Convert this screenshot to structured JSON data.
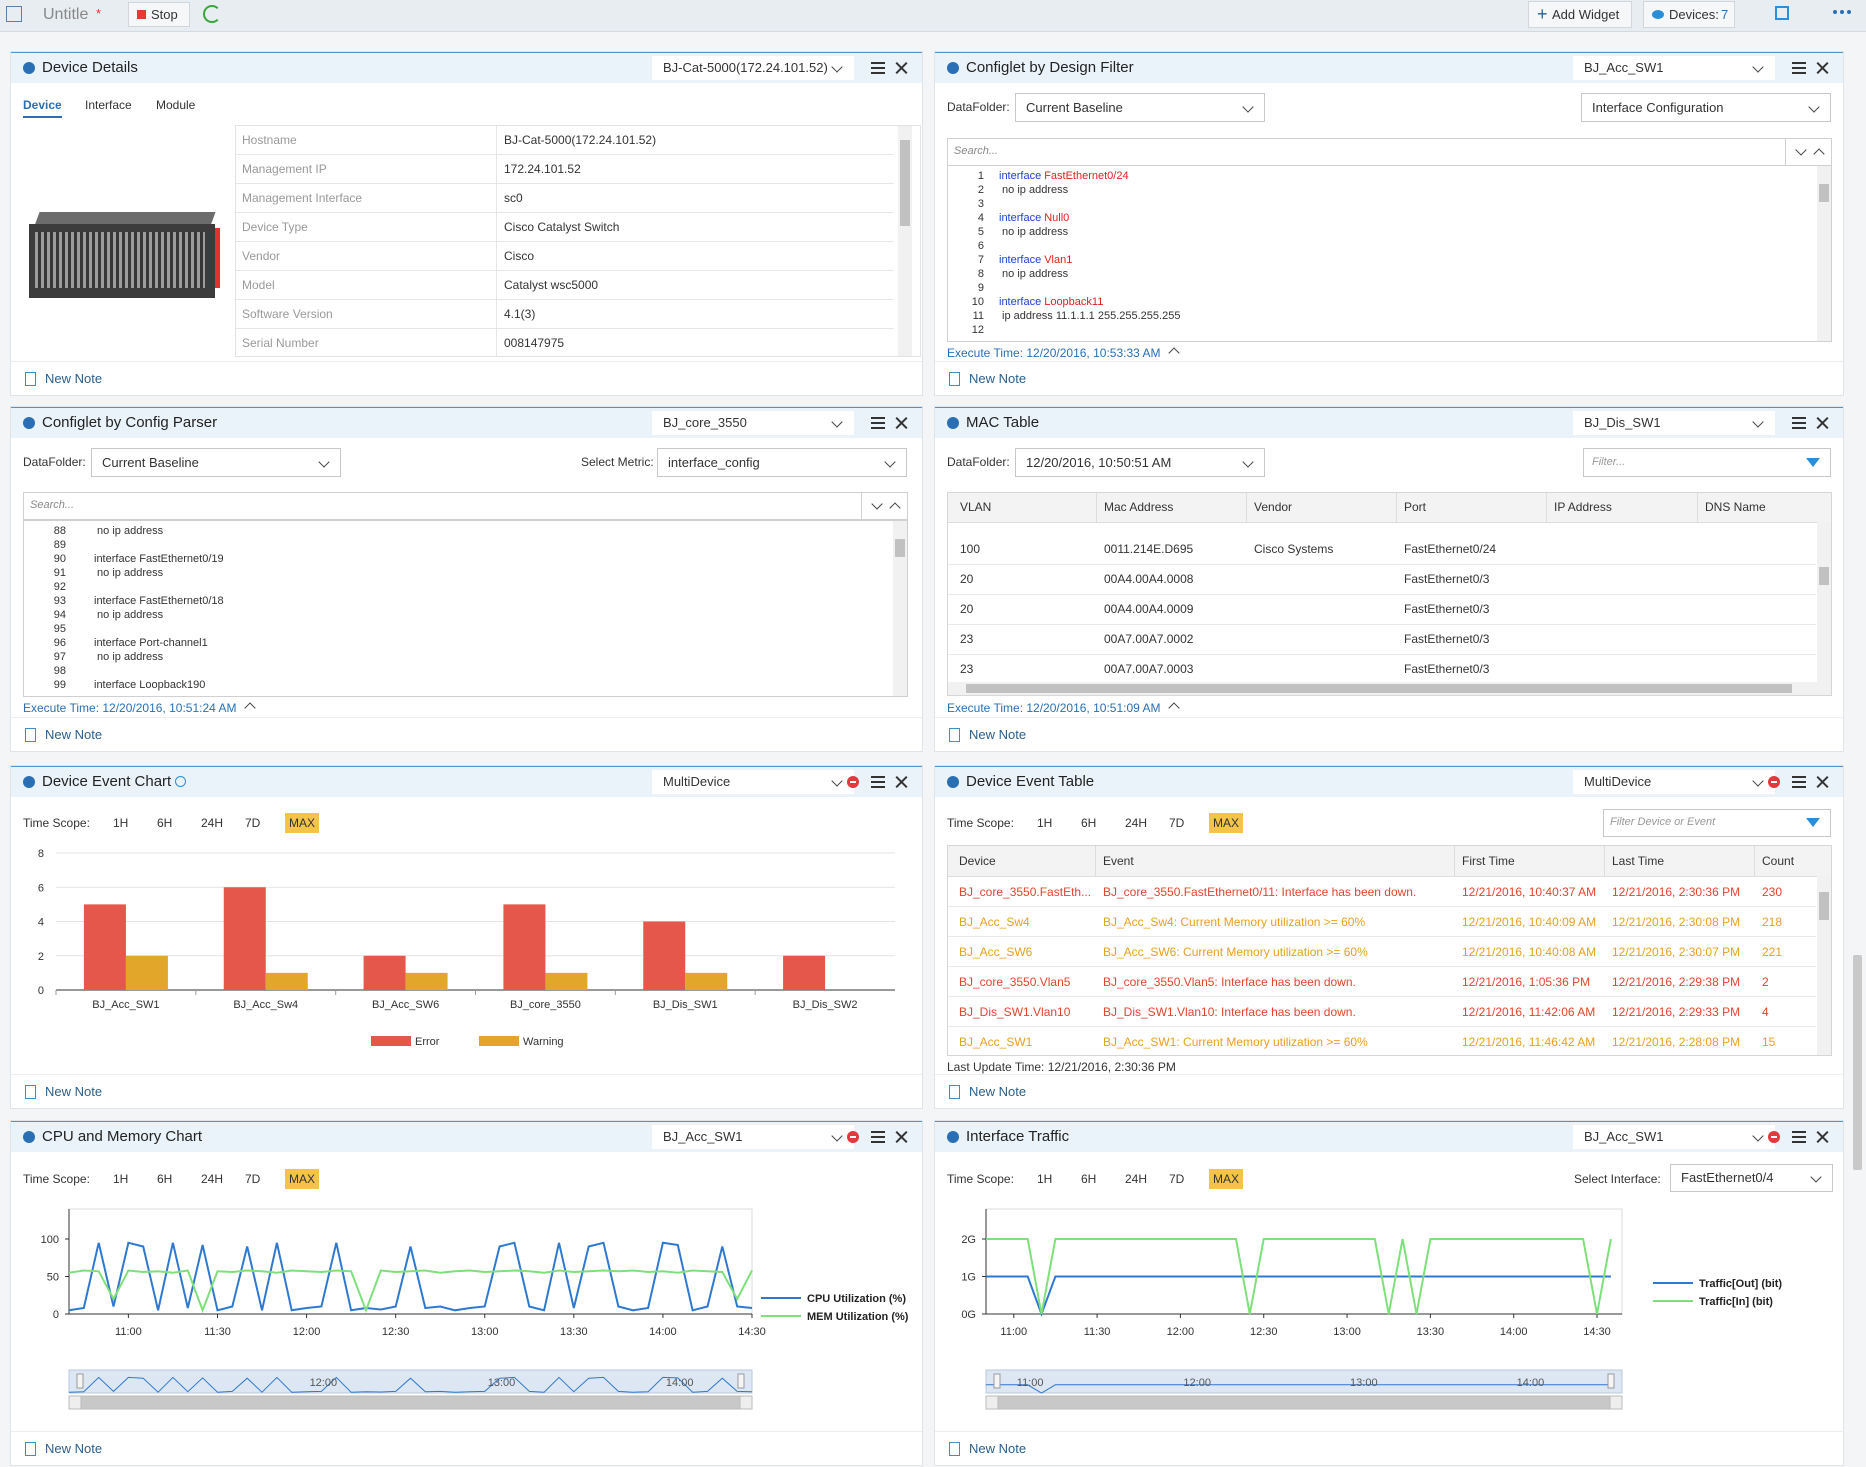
{
  "toolbar": {
    "title": "Untitle",
    "modified": "*",
    "stop": "Stop",
    "add_widget": "Add Widget",
    "devices": "Devices:",
    "device_count": 7
  },
  "device_details": {
    "title": "Device Details",
    "selector": "BJ-Cat-5000(172.24.101.52)",
    "tabs": [
      "Device",
      "Interface",
      "Module"
    ],
    "rows": [
      [
        "Hostname",
        "BJ-Cat-5000(172.24.101.52)"
      ],
      [
        "Management IP",
        "172.24.101.52"
      ],
      [
        "Management Interface",
        "sc0"
      ],
      [
        "Device Type",
        "Cisco Catalyst Switch"
      ],
      [
        "Vendor",
        "Cisco"
      ],
      [
        "Model",
        "Catalyst wsc5000"
      ],
      [
        "Software Version",
        "4.1(3)"
      ],
      [
        "Serial Number",
        "008147975"
      ]
    ],
    "note": "New Note"
  },
  "configlet_design": {
    "title": "Configlet by Design Filter",
    "selector": "BJ_Acc_SW1",
    "datafolder_label": "DataFolder:",
    "datafolder": "Current Baseline",
    "filter": "Interface Configuration",
    "search": "Search...",
    "keyword_color": "#1f3fd0",
    "name_color": "#e02020",
    "lines": [
      {
        "n": 1,
        "code": "interface",
        "name": "FastEthernet0/24"
      },
      {
        "n": 2,
        "code": " no ip address"
      },
      {
        "n": 3
      },
      {
        "n": 4,
        "code": "interface",
        "name": "Null0"
      },
      {
        "n": 5,
        "code": " no ip address"
      },
      {
        "n": 6
      },
      {
        "n": 7,
        "code": "interface",
        "name": "Vlan1"
      },
      {
        "n": 8,
        "code": " no ip address"
      },
      {
        "n": 9
      },
      {
        "n": 10,
        "code": "interface",
        "name": "Loopback11"
      },
      {
        "n": 11,
        "code": " ip address 11.1.1.1 255.255.255.255"
      },
      {
        "n": 12
      }
    ],
    "execute_time": "Execute Time: 12/20/2016, 10:53:33 AM",
    "note": "New Note"
  },
  "config_parser": {
    "title": "Configlet by Config Parser",
    "selector": "BJ_core_3550",
    "datafolder_label": "DataFolder:",
    "datafolder": "Current Baseline",
    "metric_label": "Select Metric:",
    "metric": "interface_config",
    "search": "Search...",
    "lines": [
      {
        "n": 88,
        "code": " no ip address"
      },
      {
        "n": 89
      },
      {
        "n": 90,
        "code": "interface FastEthernet0/19"
      },
      {
        "n": 91,
        "code": " no ip address"
      },
      {
        "n": 92
      },
      {
        "n": 93,
        "code": "interface FastEthernet0/18"
      },
      {
        "n": 94,
        "code": " no ip address"
      },
      {
        "n": 95
      },
      {
        "n": 96,
        "code": "interface Port-channel1"
      },
      {
        "n": 97,
        "code": " no ip address"
      },
      {
        "n": 98
      },
      {
        "n": 99,
        "code": "interface Loopback190"
      }
    ],
    "execute_time": "Execute Time: 12/20/2016, 10:51:24 AM",
    "note": "New Note"
  },
  "mac_table": {
    "title": "MAC Table",
    "selector": "BJ_Dis_SW1",
    "datafolder_label": "DataFolder:",
    "datafolder": "12/20/2016, 10:50:51 AM",
    "filter": "Filter...",
    "columns": [
      "VLAN",
      "Mac Address",
      "Vendor",
      "Port",
      "IP Address",
      "DNS Name"
    ],
    "rows": [
      [
        100,
        "0011.214E.D695",
        "Cisco Systems",
        "FastEthernet0/24"
      ],
      [
        20,
        "00A4.00A4.0008",
        null,
        "FastEthernet0/3"
      ],
      [
        20,
        "00A4.00A4.0009",
        null,
        "FastEthernet0/3"
      ],
      [
        23,
        "00A7.00A7.0002",
        null,
        "FastEthernet0/3"
      ],
      [
        23,
        "00A7.00A7.0003",
        null,
        "FastEthernet0/3"
      ]
    ],
    "execute_time": "Execute Time: 12/20/2016, 10:51:09 AM",
    "note": "New Note"
  },
  "event_chart": {
    "title": "Device Event Chart",
    "selector": "MultiDevice",
    "time_scope_label": "Time Scope:",
    "scopes": [
      "1H",
      "6H",
      "24H",
      "7D",
      "MAX"
    ],
    "selected_scope": "MAX",
    "note": "New Note",
    "chart_data": {
      "type": "bar",
      "categories": [
        "BJ_Acc_SW1",
        "BJ_Acc_Sw4",
        "BJ_Acc_SW6",
        "BJ_core_3550",
        "BJ_Dis_SW1",
        "BJ_Dis_SW2"
      ],
      "series": [
        {
          "name": "Error",
          "color": "#e5574a",
          "values": [
            5,
            6,
            2,
            5,
            4,
            2
          ]
        },
        {
          "name": "Warning",
          "color": "#e2a62a",
          "values": [
            2,
            1,
            1,
            1,
            1,
            0
          ]
        }
      ],
      "ylim": [
        0,
        8
      ],
      "yticks": [
        0,
        2,
        4,
        6,
        8
      ],
      "grid": true,
      "legend": "bottom"
    }
  },
  "event_table": {
    "title": "Device Event Table",
    "selector": "MultiDevice",
    "time_scope_label": "Time Scope:",
    "scopes": [
      "1H",
      "6H",
      "24H",
      "7D",
      "MAX"
    ],
    "selected_scope": "MAX",
    "filter": "Filter Device or Event",
    "columns": [
      "Device",
      "Event",
      "First Time",
      "Last Time",
      "Count"
    ],
    "rows": [
      [
        "BJ_core_3550.FastEth...",
        "BJ_core_3550.FastEthernet0/11: Interface has been down.",
        "12/21/2016, 10:40:37 AM",
        "12/21/2016, 2:30:36 PM",
        230
      ],
      [
        "BJ_Acc_Sw4",
        "BJ_Acc_Sw4: Current Memory utilization >= 60%",
        "12/21/2016, 10:40:09 AM",
        "12/21/2016, 2:30:08 PM",
        218
      ],
      [
        "BJ_Acc_SW6",
        "BJ_Acc_SW6: Current Memory utilization >= 60%",
        "12/21/2016, 10:40:08 AM",
        "12/21/2016, 2:30:07 PM",
        221
      ],
      [
        "BJ_core_3550.Vlan5",
        "BJ_core_3550.Vlan5: Interface has been down.",
        "12/21/2016, 1:05:36 PM",
        "12/21/2016, 2:29:38 PM",
        2
      ],
      [
        "BJ_Dis_SW1.Vlan10",
        "BJ_Dis_SW1.Vlan10: Interface has been down.",
        "12/21/2016, 11:42:06 AM",
        "12/21/2016, 2:29:33 PM",
        4
      ],
      [
        "BJ_Acc_SW1",
        "BJ_Acc_SW1: Current Memory utilization >= 60%",
        "12/21/2016, 11:46:42 AM",
        "12/21/2016, 2:28:08 PM",
        15
      ]
    ],
    "row_colors": [
      "#e5432e",
      "#e8a01e",
      "#e8a01e",
      "#e5432e",
      "#e5432e",
      "#e8a01e"
    ],
    "last_update": "Last Update Time: 12/21/2016, 2:30:36 PM",
    "note": "New Note"
  },
  "cpu_chart": {
    "title": "CPU and Memory Chart",
    "selector": "BJ_Acc_SW1",
    "time_scope_label": "Time Scope:",
    "scopes": [
      "1H",
      "6H",
      "24H",
      "7D",
      "MAX"
    ],
    "selected_scope": "MAX",
    "note": "New Note",
    "nav_labels": [
      "12:00",
      "13:00",
      "14:00"
    ],
    "chart_data": {
      "type": "line",
      "x": [
        "10:40",
        "10:45",
        "10:50",
        "10:55",
        "11:00",
        "11:05",
        "11:10",
        "11:15",
        "11:20",
        "11:25",
        "11:30",
        "11:35",
        "11:40",
        "11:45",
        "11:50",
        "11:55",
        "12:00",
        "12:05",
        "12:10",
        "12:15",
        "12:20",
        "12:25",
        "12:30",
        "12:35",
        "12:40",
        "12:45",
        "12:50",
        "12:55",
        "13:00",
        "13:05",
        "13:10",
        "13:15",
        "13:20",
        "13:25",
        "13:30",
        "13:35",
        "13:40",
        "13:45",
        "13:50",
        "13:55",
        "14:00",
        "14:05",
        "14:10",
        "14:15",
        "14:20",
        "14:25",
        "14:30"
      ],
      "series": [
        {
          "name": "CPU Utilization (%)",
          "color": "#2f78d0",
          "values": [
            5,
            8,
            95,
            10,
            95,
            90,
            5,
            95,
            8,
            92,
            5,
            10,
            90,
            5,
            95,
            5,
            8,
            10,
            95,
            5,
            8,
            6,
            10,
            90,
            8,
            10,
            5,
            8,
            10,
            90,
            95,
            10,
            5,
            95,
            8,
            90,
            95,
            10,
            5,
            8,
            95,
            92,
            5,
            10,
            90,
            10,
            8
          ]
        },
        {
          "name": "MEM Utilization (%)",
          "color": "#7ee07a",
          "values": [
            55,
            58,
            57,
            20,
            58,
            56,
            57,
            55,
            58,
            5,
            57,
            56,
            58,
            57,
            55,
            58,
            57,
            56,
            58,
            57,
            5,
            58,
            56,
            57,
            58,
            55,
            57,
            58,
            56,
            57,
            58,
            57,
            55,
            58,
            56,
            57,
            58,
            57,
            58,
            56,
            57,
            55,
            58,
            57,
            56,
            20,
            58
          ]
        }
      ],
      "xlim": [
        "10:40",
        "14:30"
      ],
      "xticks": [
        "11:00",
        "11:30",
        "12:00",
        "12:30",
        "13:00",
        "13:30",
        "14:00",
        "14:30"
      ],
      "ylim": [
        0,
        140
      ],
      "yticks": [
        0,
        50,
        100
      ],
      "legend": "right"
    }
  },
  "traffic_chart": {
    "title": "Interface Traffic",
    "selector": "BJ_Acc_SW1",
    "time_scope_label": "Time Scope:",
    "scopes": [
      "1H",
      "6H",
      "24H",
      "7D",
      "MAX"
    ],
    "selected_scope": "MAX",
    "interface_label": "Select Interface:",
    "interface": "FastEthernet0/4",
    "note": "New Note",
    "nav_labels": [
      "11:00",
      "12:00",
      "13:00",
      "14:00"
    ],
    "chart_data": {
      "type": "line",
      "x": [
        "10:50",
        "10:55",
        "11:00",
        "11:05",
        "11:10",
        "11:15",
        "11:20",
        "11:25",
        "11:30",
        "11:35",
        "11:40",
        "11:45",
        "11:50",
        "11:55",
        "12:00",
        "12:05",
        "12:10",
        "12:15",
        "12:20",
        "12:25",
        "12:30",
        "12:35",
        "12:40",
        "12:45",
        "12:50",
        "12:55",
        "13:00",
        "13:05",
        "13:10",
        "13:15",
        "13:20",
        "13:25",
        "13:30",
        "13:35",
        "13:40",
        "13:45",
        "13:50",
        "13:55",
        "14:00",
        "14:05",
        "14:10",
        "14:15",
        "14:20",
        "14:25",
        "14:30",
        "14:35"
      ],
      "series": [
        {
          "name": "Traffic[Out] (bit)",
          "color": "#2f78d0",
          "values": [
            1,
            1,
            1,
            1,
            0,
            1,
            1,
            1,
            1,
            1,
            1,
            1,
            1,
            1,
            1,
            1,
            1,
            1,
            1,
            1,
            1,
            1,
            1,
            1,
            1,
            1,
            1,
            1,
            1,
            1,
            1,
            1,
            1,
            1,
            1,
            1,
            1,
            1,
            1,
            1,
            1,
            1,
            1,
            1,
            1,
            1
          ]
        },
        {
          "name": "Traffic[In] (bit)",
          "color": "#7ee07a",
          "values": [
            2,
            2,
            2,
            2,
            0,
            2,
            2,
            2,
            2,
            2,
            2,
            2,
            2,
            2,
            2,
            2,
            2,
            2,
            2,
            0,
            2,
            2,
            2,
            2,
            2,
            2,
            2,
            2,
            2,
            0,
            2,
            0,
            2,
            2,
            2,
            2,
            2,
            2,
            2,
            2,
            2,
            2,
            2,
            2,
            0,
            2
          ]
        }
      ],
      "xlim": [
        "10:50",
        "14:39"
      ],
      "xticks": [
        "11:00",
        "11:30",
        "12:00",
        "12:30",
        "13:00",
        "13:30",
        "14:00",
        "14:30"
      ],
      "ylim": [
        0,
        2.8
      ],
      "yticks": [
        {
          "value": 0,
          "label": "0G"
        },
        {
          "value": 1,
          "label": "1G"
        },
        {
          "value": 2,
          "label": "2G"
        }
      ],
      "legend": "right"
    }
  }
}
